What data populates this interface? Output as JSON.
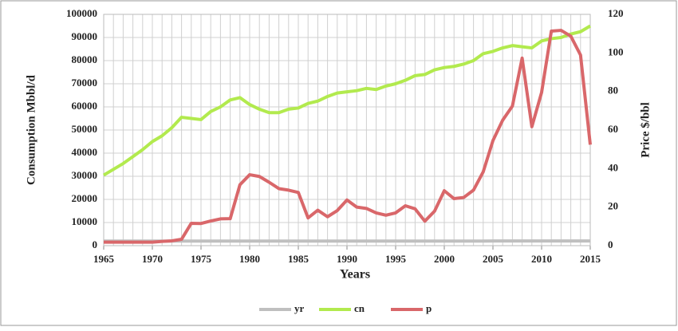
{
  "chart_data": {
    "type": "line",
    "x": [
      1965,
      1966,
      1967,
      1968,
      1969,
      1970,
      1971,
      1972,
      1973,
      1974,
      1975,
      1976,
      1977,
      1978,
      1979,
      1980,
      1981,
      1982,
      1983,
      1984,
      1985,
      1986,
      1987,
      1988,
      1989,
      1990,
      1991,
      1992,
      1993,
      1994,
      1995,
      1996,
      1997,
      1998,
      1999,
      2000,
      2001,
      2002,
      2003,
      2004,
      2005,
      2006,
      2007,
      2008,
      2009,
      2010,
      2011,
      2012,
      2013,
      2014,
      2015
    ],
    "series": [
      {
        "name": "yr",
        "color": "#bfbfbf",
        "values": [
          1965,
          1966,
          1967,
          1968,
          1969,
          1970,
          1971,
          1972,
          1973,
          1974,
          1975,
          1976,
          1977,
          1978,
          1979,
          1980,
          1981,
          1982,
          1983,
          1984,
          1985,
          1986,
          1987,
          1988,
          1989,
          1990,
          1991,
          1992,
          1993,
          1994,
          1995,
          1996,
          1997,
          1998,
          1999,
          2000,
          2001,
          2002,
          2003,
          2004,
          2005,
          2006,
          2007,
          2008,
          2009,
          2010,
          2011,
          2012,
          2013,
          2014,
          2015
        ]
      },
      {
        "name": "cn",
        "color": "#b2ea4e",
        "values": [
          30500,
          33000,
          35500,
          38500,
          41500,
          45000,
          47500,
          51000,
          55500,
          55000,
          54500,
          58000,
          60000,
          63000,
          64000,
          61000,
          59000,
          57500,
          57500,
          59000,
          59500,
          61500,
          62500,
          64500,
          66000,
          66500,
          67000,
          68000,
          67500,
          69000,
          70000,
          71500,
          73500,
          74000,
          76000,
          77000,
          77500,
          78500,
          80000,
          83000,
          84000,
          85500,
          86500,
          86000,
          85500,
          88500,
          89500,
          90000,
          91500,
          92500,
          95000
        ]
      },
      {
        "name": "p",
        "color": "#d9676a",
        "axis": "y2",
        "values": [
          1.8,
          1.8,
          1.8,
          1.8,
          1.8,
          1.8,
          2.2,
          2.5,
          3.3,
          11.6,
          11.5,
          12.8,
          13.9,
          14.0,
          31.6,
          36.8,
          35.9,
          32.9,
          29.6,
          28.8,
          27.6,
          14.4,
          18.4,
          15.0,
          18.2,
          23.7,
          20.0,
          19.3,
          17.0,
          15.8,
          17.0,
          20.7,
          19.1,
          12.7,
          17.9,
          28.5,
          24.4,
          25.0,
          28.8,
          38.3,
          54.5,
          65.1,
          72.4,
          97.3,
          61.7,
          79.5,
          111.3,
          111.7,
          108.7,
          98.9,
          52.4
        ]
      }
    ],
    "xlabel": "Years",
    "ylabel": "Consumption Mbbl/d",
    "y2label": "Price $/bbl",
    "xlim": [
      1965,
      2015
    ],
    "xticks": [
      1965,
      1970,
      1975,
      1980,
      1985,
      1990,
      1995,
      2000,
      2005,
      2010,
      2015
    ],
    "ylim": [
      0,
      100000
    ],
    "yticks": [
      0,
      10000,
      20000,
      30000,
      40000,
      50000,
      60000,
      70000,
      80000,
      90000,
      100000
    ],
    "y2lim": [
      0,
      120
    ],
    "y2ticks": [
      0,
      20,
      40,
      60,
      80,
      100,
      120
    ],
    "grid": true,
    "legend": "bottom"
  }
}
